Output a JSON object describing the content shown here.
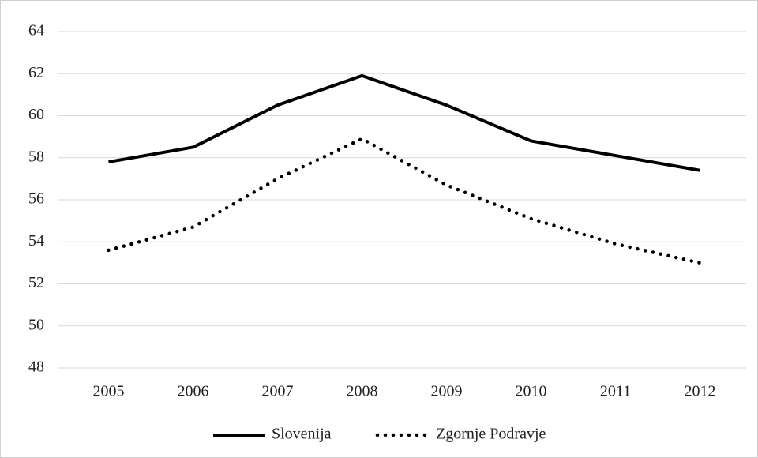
{
  "chart_data": {
    "type": "line",
    "categories": [
      "2005",
      "2006",
      "2007",
      "2008",
      "2009",
      "2010",
      "2011",
      "2012"
    ],
    "series": [
      {
        "name": "Slovenija",
        "color": "#000000",
        "style": "solid",
        "values": [
          57.8,
          58.5,
          60.5,
          61.9,
          60.5,
          58.8,
          58.1,
          57.4
        ]
      },
      {
        "name": "Zgornje Podravje",
        "color": "#000000",
        "style": "dotted",
        "values": [
          53.6,
          54.7,
          57.0,
          58.9,
          56.7,
          55.1,
          53.9,
          53.0
        ]
      }
    ],
    "ylim": [
      48,
      64
    ],
    "yticks": [
      48,
      50,
      52,
      54,
      56,
      58,
      60,
      62,
      64
    ],
    "grid": true,
    "legend": "bottom"
  }
}
